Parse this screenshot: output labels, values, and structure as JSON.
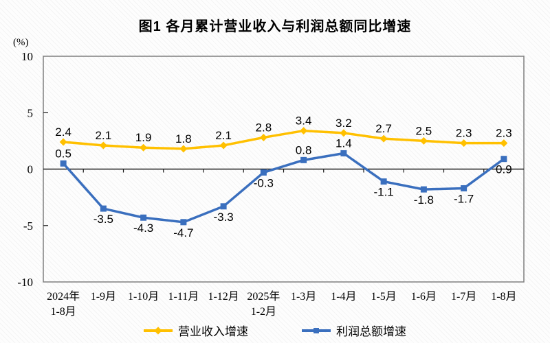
{
  "title": "图1  各月累计营业收入与利润总额同比增速",
  "y_axis": {
    "unit": "(%)"
  },
  "chart_data": {
    "type": "line",
    "title": "图1  各月累计营业收入与利润总额同比增速",
    "ylabel": "(%)",
    "ylim": [
      -10,
      10
    ],
    "yticks": [
      10,
      5,
      0,
      -5,
      -10
    ],
    "grid": false,
    "legend_position": "bottom",
    "categories": [
      "2024年\n1-8月",
      "1-9月",
      "1-10月",
      "1-11月",
      "1-12月",
      "2025年\n1-2月",
      "1-3月",
      "1-4月",
      "1-5月",
      "1-6月",
      "1-7月",
      "1-8月"
    ],
    "series": [
      {
        "name": "营业收入增速",
        "color": "#FFC000",
        "marker": "diamond",
        "values": [
          2.4,
          2.1,
          1.9,
          1.8,
          2.1,
          2.8,
          3.4,
          3.2,
          2.7,
          2.5,
          2.3,
          2.3
        ],
        "label_sides": [
          "above",
          "above",
          "above",
          "above",
          "above",
          "above",
          "above",
          "above",
          "above",
          "above",
          "above",
          "above"
        ]
      },
      {
        "name": "利润总额增速",
        "color": "#3A6FBE",
        "marker": "square",
        "values": [
          0.5,
          -3.5,
          -4.3,
          -4.7,
          -3.3,
          -0.3,
          0.8,
          1.4,
          -1.1,
          -1.8,
          -1.7,
          0.9
        ],
        "label_sides": [
          "above",
          "below",
          "below",
          "below",
          "below",
          "below",
          "above",
          "above",
          "below",
          "below",
          "below",
          "below"
        ]
      }
    ]
  }
}
